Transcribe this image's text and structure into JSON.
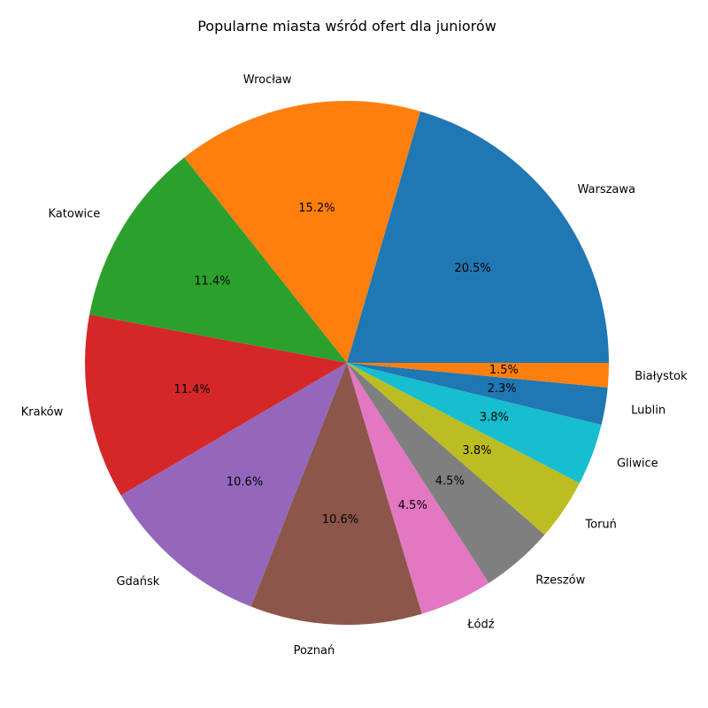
{
  "chart_data": {
    "type": "pie",
    "title": "Popularne miasta wśród ofert dla juniorów",
    "slices": [
      {
        "label": "Warszawa",
        "value": 20.5,
        "pct_text": "20.5%",
        "color": "#1f77b4"
      },
      {
        "label": "Wrocław",
        "value": 15.2,
        "pct_text": "15.2%",
        "color": "#ff7f0e"
      },
      {
        "label": "Katowice",
        "value": 11.4,
        "pct_text": "11.4%",
        "color": "#2ca02c"
      },
      {
        "label": "Kraków",
        "value": 11.4,
        "pct_text": "11.4%",
        "color": "#d62728"
      },
      {
        "label": "Gdańsk",
        "value": 10.6,
        "pct_text": "10.6%",
        "color": "#9467bd"
      },
      {
        "label": "Poznań",
        "value": 10.6,
        "pct_text": "10.6%",
        "color": "#8c564b"
      },
      {
        "label": "Łódź",
        "value": 4.5,
        "pct_text": "4.5%",
        "color": "#e377c2"
      },
      {
        "label": "Rzeszów",
        "value": 4.5,
        "pct_text": "4.5%",
        "color": "#7f7f7f"
      },
      {
        "label": "Toruń",
        "value": 3.8,
        "pct_text": "3.8%",
        "color": "#bcbd22"
      },
      {
        "label": "Gliwice",
        "value": 3.8,
        "pct_text": "3.8%",
        "color": "#17becf"
      },
      {
        "label": "Lublin",
        "value": 2.3,
        "pct_text": "2.3%",
        "color": "#1f77b4"
      },
      {
        "label": "Białystok",
        "value": 1.5,
        "pct_text": "1.5%",
        "color": "#ff7f0e"
      }
    ],
    "start_angle": "0°",
    "direction": "counterclockwise",
    "legend": "none"
  }
}
